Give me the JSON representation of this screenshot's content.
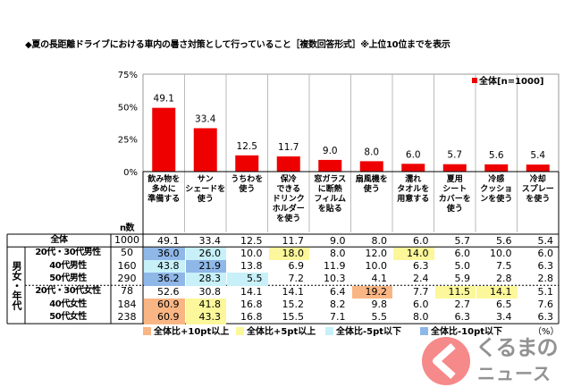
{
  "title": "◆夏の長距離ドライブにおける車内の暑さ対策として行っていること［複数回答形式］※上位10位までを表示",
  "colors": {
    "bar": "#ee0000",
    "plus10": "#f9b584",
    "plus5": "#fbf79a",
    "minus5": "#c7f0f9",
    "minus10": "#8fb7e8"
  },
  "chart_data": {
    "type": "bar",
    "legend": "全体[n=1000]",
    "legend_position": "top-right",
    "ylim": [
      0,
      75
    ],
    "yticks": [
      "0%",
      "25%",
      "50%",
      "75%"
    ],
    "ytick_values": [
      0,
      25,
      50,
      75
    ],
    "categories": [
      "飲み物を多めに準備する",
      "サンシェードを使う",
      "うちわを使う",
      "保冷できるドリンクホルダーを使う",
      "窓ガラスに断熱フィルムを貼る",
      "扇風機を使う",
      "濡れタオルを用意する",
      "夏用シートカバーを使う",
      "冷感クッションを使う",
      "冷却スプレーを使う"
    ],
    "category_lines": [
      [
        "飲み物を",
        "多めに",
        "準備する"
      ],
      [
        "サン",
        "シェードを",
        "使う"
      ],
      [
        "うちわを",
        "使う"
      ],
      [
        "保冷",
        "できる",
        "ドリンク",
        "ホルダー",
        "を使う"
      ],
      [
        "窓ガラス",
        "に断熱",
        "フィルム",
        "を貼る"
      ],
      [
        "扇風機を",
        "使う"
      ],
      [
        "濡れ",
        "タオルを",
        "用意する"
      ],
      [
        "夏用",
        "シート",
        "カバーを",
        "使う"
      ],
      [
        "冷感",
        "クッショ",
        "ンを使う"
      ],
      [
        "冷却",
        "スプレー",
        "を使う"
      ]
    ],
    "values": [
      49.1,
      33.4,
      12.5,
      11.7,
      9.0,
      8.0,
      6.0,
      5.7,
      5.6,
      5.4
    ],
    "labels": [
      "49.1",
      "33.4",
      "12.5",
      "11.7",
      "9.0",
      "8.0",
      "6.0",
      "5.7",
      "5.6",
      "5.4"
    ]
  },
  "table": {
    "n_header": "n数",
    "group_label": "男女・年代",
    "rows": [
      {
        "label": "全体",
        "n": "1000",
        "values": [
          "49.1",
          "33.4",
          "12.5",
          "11.7",
          "9.0",
          "8.0",
          "6.0",
          "5.7",
          "5.6",
          "5.4"
        ],
        "flags": [
          "",
          "",
          "",
          "",
          "",
          "",
          "",
          "",
          "",
          ""
        ]
      },
      {
        "label": "20代・30代男性",
        "n": "50",
        "values": [
          "36.0",
          "26.0",
          "10.0",
          "18.0",
          "8.0",
          "12.0",
          "14.0",
          "6.0",
          "10.0",
          "6.0"
        ],
        "flags": [
          "minus10",
          "minus5",
          "",
          "plus5",
          "",
          "",
          "plus5",
          "",
          "",
          ""
        ]
      },
      {
        "label": "40代男性",
        "n": "160",
        "values": [
          "43.8",
          "21.9",
          "13.8",
          "6.9",
          "11.9",
          "10.0",
          "6.3",
          "5.0",
          "7.5",
          "6.3"
        ],
        "flags": [
          "minus5",
          "minus10",
          "",
          "",
          "",
          "",
          "",
          "",
          "",
          ""
        ]
      },
      {
        "label": "50代男性",
        "n": "290",
        "values": [
          "36.2",
          "28.3",
          "5.5",
          "7.2",
          "10.3",
          "4.1",
          "2.4",
          "5.9",
          "2.8",
          "2.8"
        ],
        "flags": [
          "minus10",
          "minus5",
          "minus5",
          "",
          "",
          "",
          "",
          "",
          "",
          ""
        ]
      },
      {
        "label": "20代・30代女性",
        "n": "78",
        "values": [
          "52.6",
          "30.8",
          "14.1",
          "14.1",
          "6.4",
          "19.2",
          "7.7",
          "11.5",
          "14.1",
          "5.1"
        ],
        "flags": [
          "",
          "",
          "",
          "",
          "",
          "plus10",
          "",
          "plus5",
          "plus5",
          ""
        ]
      },
      {
        "label": "40代女性",
        "n": "184",
        "values": [
          "60.9",
          "41.8",
          "16.8",
          "15.2",
          "8.2",
          "9.8",
          "6.0",
          "2.7",
          "6.5",
          "7.6"
        ],
        "flags": [
          "plus10",
          "plus5",
          "",
          "",
          "",
          "",
          "",
          "",
          "",
          ""
        ]
      },
      {
        "label": "50代女性",
        "n": "238",
        "values": [
          "60.9",
          "43.3",
          "16.8",
          "15.5",
          "7.1",
          "5.5",
          "8.0",
          "6.3",
          "3.4",
          "6.3"
        ],
        "flags": [
          "plus10",
          "plus5",
          "",
          "",
          "",
          "",
          "",
          "",
          "",
          ""
        ]
      }
    ],
    "legend": [
      {
        "key": "plus10",
        "label": "全体比+10pt以上"
      },
      {
        "key": "plus5",
        "label": "全体比+5pt以上"
      },
      {
        "key": "minus5",
        "label": "全体比-5pt以下"
      },
      {
        "key": "minus10",
        "label": "全体比-10pt以下"
      }
    ],
    "unit": "（%）"
  },
  "watermark": {
    "line1": "くるまの",
    "line2": "ニュース"
  }
}
